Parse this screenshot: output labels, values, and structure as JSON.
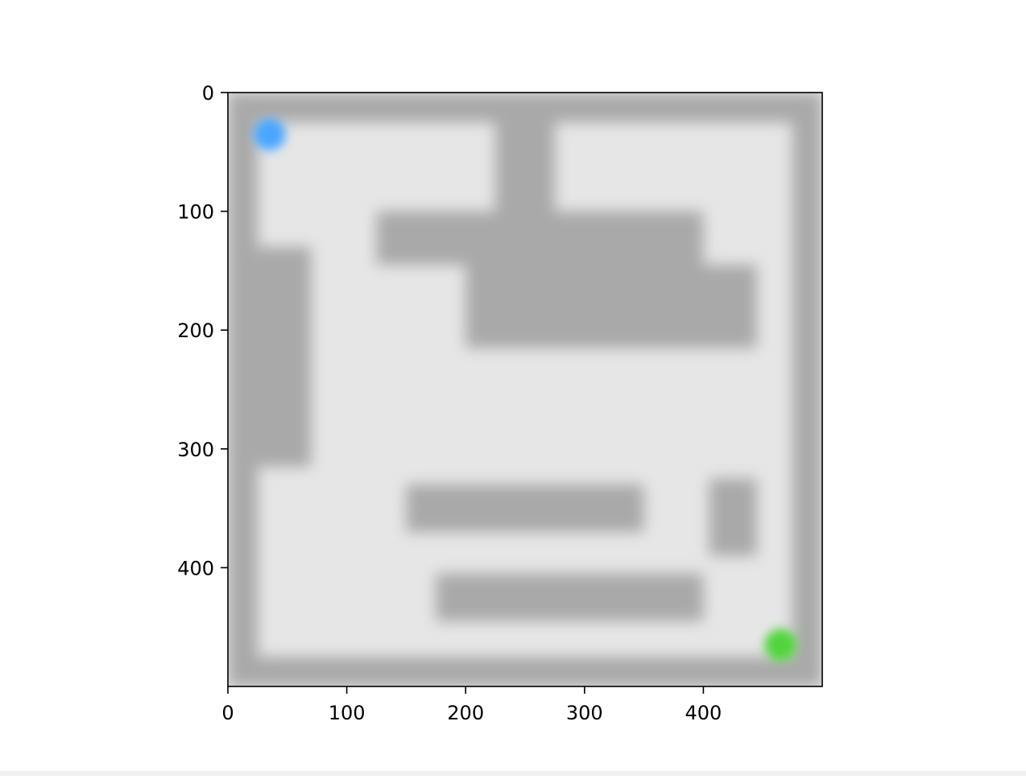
{
  "plot": {
    "x_ticks": [
      "0",
      "100",
      "200",
      "300",
      "400"
    ],
    "y_ticks": [
      "0",
      "100",
      "200",
      "300",
      "400"
    ]
  },
  "chart_data": {
    "type": "maze-image",
    "xlim": [
      0,
      500
    ],
    "ylim": [
      500,
      0
    ],
    "x_tick_values": [
      0,
      100,
      200,
      300,
      400
    ],
    "y_tick_values": [
      0,
      100,
      200,
      300,
      400
    ],
    "walls_data_units": [
      {
        "x0": 0,
        "y0": 0,
        "x1": 500,
        "y1": 25
      },
      {
        "x0": 0,
        "y0": 475,
        "x1": 500,
        "y1": 500
      },
      {
        "x0": 0,
        "y0": 0,
        "x1": 25,
        "y1": 500
      },
      {
        "x0": 475,
        "y0": 0,
        "x1": 500,
        "y1": 500
      },
      {
        "x0": 225,
        "y0": 25,
        "x1": 275,
        "y1": 100
      },
      {
        "x0": 125,
        "y0": 100,
        "x1": 400,
        "y1": 145
      },
      {
        "x0": 200,
        "y0": 145,
        "x1": 445,
        "y1": 215
      },
      {
        "x0": 25,
        "y0": 130,
        "x1": 70,
        "y1": 315
      },
      {
        "x0": 150,
        "y0": 330,
        "x1": 350,
        "y1": 370
      },
      {
        "x0": 405,
        "y0": 325,
        "x1": 445,
        "y1": 390
      },
      {
        "x0": 175,
        "y0": 405,
        "x1": 400,
        "y1": 445
      }
    ],
    "start": {
      "x": 35,
      "y": 35
    },
    "goal": {
      "x": 465,
      "y": 465
    },
    "colors": {
      "wall": "#a9a9a9",
      "floor": "#e6e6e6",
      "start": "#4aa6ff",
      "goal": "#4fd63a"
    }
  }
}
